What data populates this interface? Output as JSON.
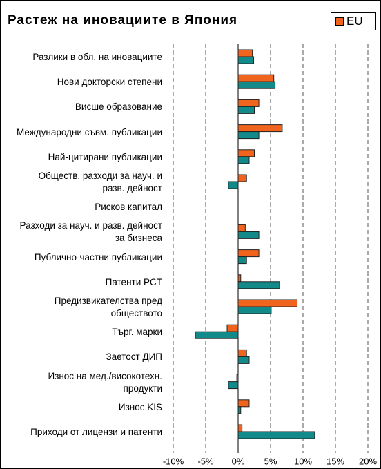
{
  "chart_data": {
    "type": "hbar",
    "title": "Растеж на иновациите в Япония",
    "categories": [
      "Разлики в обл. на иновациите",
      "Нови докторски степени",
      "Висше образование",
      "Международни съвм. публикации",
      "Най-цитирани публикации",
      "Обществ. разходи за науч. и разв. дейност",
      "Рисков капитал",
      "Разходи за науч. и разв. дейност за бизнеса",
      "Публично-частни публикации",
      "Патенти PCT",
      "Предизвикателства пред обществото",
      "Търг. марки",
      "Заетост ДИП",
      "Износ на мед./високотехн. продукти",
      "Износ KIS",
      "Приходи от лицензи и патенти"
    ],
    "series": [
      {
        "name": "EU",
        "color": "#f0641e",
        "values": [
          2.2,
          5.5,
          3.2,
          6.8,
          2.5,
          1.3,
          null,
          1.1,
          3.2,
          0.4,
          9.1,
          -1.7,
          1.3,
          -0.2,
          1.7,
          0.6
        ]
      },
      {
        "color": "#138a8a",
        "values": [
          2.4,
          5.7,
          2.5,
          3.2,
          1.7,
          -1.5,
          null,
          3.2,
          1.3,
          6.4,
          5.1,
          -6.6,
          1.7,
          -1.5,
          0.4,
          11.8
        ]
      }
    ],
    "xlim": [
      -10,
      20
    ],
    "xticks": [
      {
        "value": -10,
        "label": "-10%"
      },
      {
        "value": -5,
        "label": "-5%"
      },
      {
        "value": 0,
        "label": "0%"
      },
      {
        "value": 5,
        "label": "5%"
      },
      {
        "value": 10,
        "label": "10%"
      },
      {
        "value": 15,
        "label": "15%"
      },
      {
        "value": 20,
        "label": "20%"
      }
    ],
    "grid": true,
    "legend": "top-right"
  }
}
